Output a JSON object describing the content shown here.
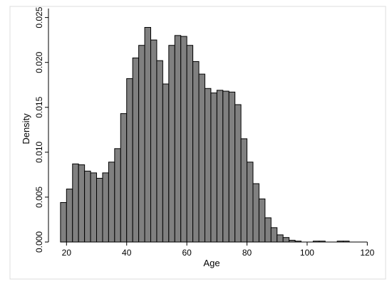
{
  "chart_data": {
    "type": "bar",
    "title": "",
    "xlabel": "Age",
    "ylabel": "Density",
    "xlim": [
      14,
      123
    ],
    "ylim": [
      0,
      0.026
    ],
    "grid": false,
    "legend": "none",
    "x_ticks": [
      20,
      40,
      60,
      80,
      100,
      120
    ],
    "y_ticks": [
      0.0,
      0.005,
      0.01,
      0.015,
      0.02,
      0.025
    ],
    "x_tick_labels": [
      "20",
      "40",
      "60",
      "80",
      "100",
      "120"
    ],
    "y_tick_labels": [
      "0.000",
      "0.005",
      "0.010",
      "0.015",
      "0.020",
      "0.025"
    ],
    "bin_width": 2,
    "bin_starts": [
      18,
      20,
      22,
      24,
      26,
      28,
      30,
      32,
      34,
      36,
      38,
      40,
      42,
      44,
      46,
      48,
      50,
      52,
      54,
      56,
      58,
      60,
      62,
      64,
      66,
      68,
      70,
      72,
      74,
      76,
      78,
      80,
      82,
      84,
      86,
      88,
      90,
      92,
      94,
      96,
      98,
      100,
      102,
      104,
      106,
      108,
      110,
      112
    ],
    "values": [
      0.0044,
      0.0059,
      0.0087,
      0.0086,
      0.0079,
      0.0077,
      0.0071,
      0.0077,
      0.0089,
      0.0104,
      0.0143,
      0.0182,
      0.0205,
      0.0219,
      0.0239,
      0.0225,
      0.0202,
      0.0176,
      0.0219,
      0.023,
      0.0229,
      0.0219,
      0.0201,
      0.0187,
      0.0171,
      0.0166,
      0.0169,
      0.0168,
      0.0167,
      0.0153,
      0.0115,
      0.0089,
      0.0065,
      0.0048,
      0.0027,
      0.0016,
      0.0008,
      0.0005,
      0.0002,
      0.0001,
      0.0,
      0.0,
      0.0001,
      0.0001,
      0.0,
      0.0,
      0.0001,
      0.0001
    ],
    "colors": {
      "bar_fill": "#808080",
      "bar_stroke": "#000000",
      "axis": "#000000"
    }
  }
}
